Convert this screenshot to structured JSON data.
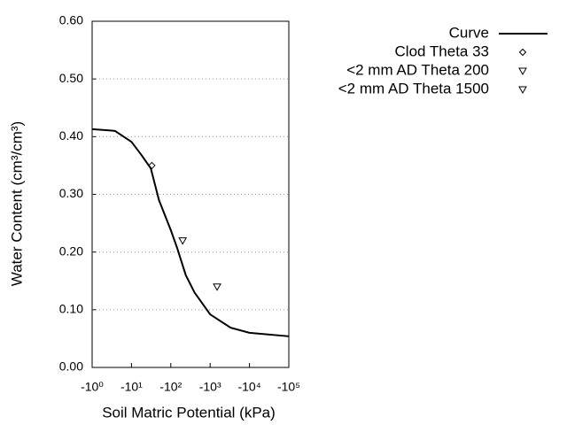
{
  "chart_data": {
    "type": "line",
    "xlabel": "Soil Matric Potential (kPa)",
    "ylabel": "Water Content (cm³/cm³)",
    "xscale": "log",
    "xlim": [
      -1,
      -100000
    ],
    "xticks": [
      {
        "value": -1,
        "label": "-10⁰"
      },
      {
        "value": -10,
        "label": "-10¹"
      },
      {
        "value": -100,
        "label": "-10²"
      },
      {
        "value": -1000,
        "label": "-10³"
      },
      {
        "value": -10000,
        "label": "-10⁴"
      },
      {
        "value": -100000,
        "label": "-10⁵"
      }
    ],
    "ylim": [
      0,
      0.6
    ],
    "yticks": [
      {
        "value": 0,
        "label": "0.00"
      },
      {
        "value": 0.1,
        "label": "0.10"
      },
      {
        "value": 0.2,
        "label": "0.20"
      },
      {
        "value": 0.3,
        "label": "0.30"
      },
      {
        "value": 0.4,
        "label": "0.40"
      },
      {
        "value": 0.5,
        "label": "0.50"
      },
      {
        "value": 0.6,
        "label": "0.60"
      }
    ],
    "grid": true,
    "legend": "top-right",
    "series": [
      {
        "name": "Curve",
        "marker": "line",
        "color": "#000000",
        "x": [
          -1,
          -3.8,
          -10,
          -18,
          -31,
          -50,
          -100,
          -145,
          -240,
          -400,
          -1000,
          -3300,
          -10000,
          -100000
        ],
        "values": [
          0.413,
          0.41,
          0.391,
          0.368,
          0.345,
          0.29,
          0.238,
          0.207,
          0.16,
          0.13,
          0.092,
          0.069,
          0.06,
          0.054
        ]
      },
      {
        "name": "Clod Theta 33",
        "marker": "diamond",
        "color": "#000000",
        "x": [
          -33
        ],
        "values": [
          0.35
        ]
      },
      {
        "name": "<2 mm AD Theta 200",
        "marker": "triangle-down",
        "color": "#000000",
        "x": [
          -200
        ],
        "values": [
          0.22
        ]
      },
      {
        "name": "<2 mm AD Theta 1500",
        "marker": "triangle-down",
        "color": "#000000",
        "x": [
          -1500
        ],
        "values": [
          0.14
        ]
      }
    ]
  }
}
